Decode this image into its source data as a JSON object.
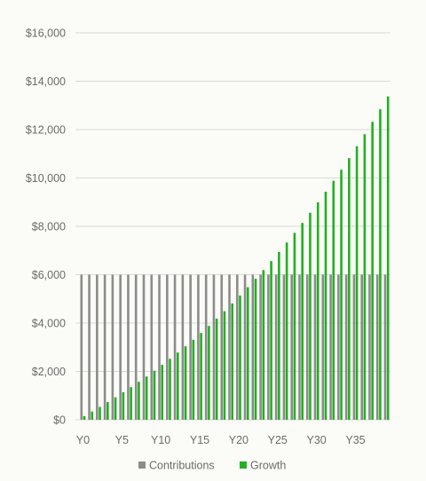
{
  "chart_data": {
    "type": "bar",
    "ylim": [
      0,
      16000
    ],
    "y_ticks": [
      0,
      2000,
      4000,
      6000,
      8000,
      10000,
      12000,
      14000,
      16000
    ],
    "y_tick_labels": [
      "$0",
      "$2,000",
      "$4,000",
      "$6,000",
      "$8,000",
      "$10,000",
      "$12,000",
      "$14,000",
      "$16,000"
    ],
    "categories": [
      "Y0",
      "Y1",
      "Y2",
      "Y3",
      "Y4",
      "Y5",
      "Y6",
      "Y7",
      "Y8",
      "Y9",
      "Y10",
      "Y11",
      "Y12",
      "Y13",
      "Y14",
      "Y15",
      "Y16",
      "Y17",
      "Y18",
      "Y19",
      "Y20",
      "Y21",
      "Y22",
      "Y23",
      "Y24",
      "Y25",
      "Y26",
      "Y27",
      "Y28",
      "Y29",
      "Y30",
      "Y31",
      "Y32",
      "Y33",
      "Y34",
      "Y35",
      "Y36",
      "Y37",
      "Y38",
      "Y39"
    ],
    "x_tick_labels": [
      "Y0",
      "Y5",
      "Y10",
      "Y15",
      "Y20",
      "Y25",
      "Y30",
      "Y35"
    ],
    "grid": true,
    "legend_position": "bottom",
    "series": [
      {
        "name": "Contributions",
        "color": "#8c8c8c",
        "values": [
          6000,
          6000,
          6000,
          6000,
          6000,
          6000,
          6000,
          6000,
          6000,
          6000,
          6000,
          6000,
          6000,
          6000,
          6000,
          6000,
          6000,
          6000,
          6000,
          6000,
          6000,
          6000,
          6000,
          6000,
          6000,
          6000,
          6000,
          6000,
          6000,
          6000,
          6000,
          6000,
          6000,
          6000,
          6000,
          6000,
          6000,
          6000,
          6000,
          6000
        ]
      },
      {
        "name": "Growth",
        "color": "#22b022",
        "values": [
          150,
          340,
          530,
          730,
          930,
          1140,
          1350,
          1570,
          1790,
          2030,
          2270,
          2520,
          2780,
          3040,
          3310,
          3590,
          3880,
          4180,
          4490,
          4810,
          5140,
          5480,
          5830,
          6190,
          6560,
          6940,
          7330,
          7730,
          8140,
          8560,
          8990,
          9430,
          9880,
          10340,
          10820,
          11310,
          11810,
          12320,
          12840,
          13370
        ]
      }
    ]
  }
}
